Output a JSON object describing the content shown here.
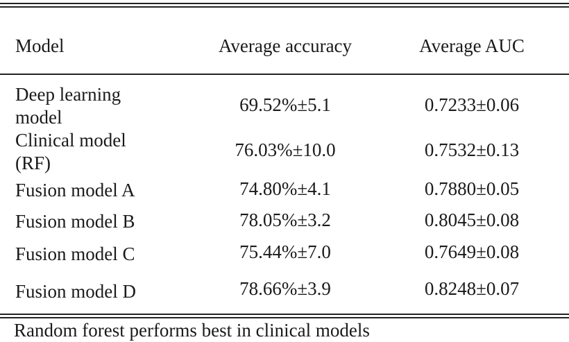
{
  "table": {
    "headers": [
      "Model",
      "Average accuracy",
      "Average AUC"
    ],
    "rows": [
      [
        "Deep learning\nmodel",
        "69.52%±5.1",
        "0.7233±0.06"
      ],
      [
        "Clinical model\n(RF)",
        "76.03%±10.0",
        "0.7532±0.13"
      ],
      [
        "Fusion model A",
        "74.80%±4.1",
        "0.7880±0.05"
      ],
      [
        "Fusion model B",
        "78.05%±3.2",
        "0.8045±0.08"
      ],
      [
        "Fusion model C",
        "75.44%±7.0",
        "0.7649±0.08"
      ],
      [
        "Fusion model D",
        "78.66%±3.9",
        "0.8248±0.07"
      ]
    ]
  },
  "footnote": "Random forest performs best in clinical models"
}
